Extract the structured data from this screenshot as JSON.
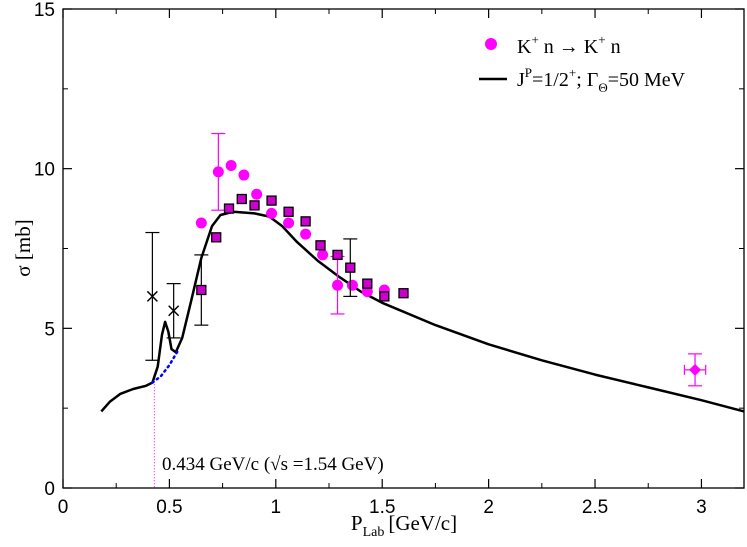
{
  "chart_data": {
    "type": "scatter",
    "xlabel": "P",
    "xlabel_sub": "Lab",
    "xlabel_unit": "[GeV/c]",
    "ylabel": "σ [mb]",
    "xlim": [
      0,
      3.2
    ],
    "ylim": [
      0,
      15
    ],
    "x_ticks": [
      {
        "value": 0,
        "label": "0"
      },
      {
        "value": 0.5,
        "label": "0.5"
      },
      {
        "value": 1,
        "label": "1"
      },
      {
        "value": 1.5,
        "label": "1.5"
      },
      {
        "value": 2,
        "label": "2"
      },
      {
        "value": 2.5,
        "label": "2.5"
      },
      {
        "value": 3,
        "label": "3"
      }
    ],
    "y_ticks": [
      {
        "value": 0,
        "label": "0"
      },
      {
        "value": 5,
        "label": "5"
      },
      {
        "value": 10,
        "label": "10"
      },
      {
        "value": 15,
        "label": "15"
      }
    ],
    "legend": {
      "position": "top-right",
      "entries": [
        {
          "label": "K+ n → K+ n",
          "marker": "circle",
          "color": "#ff00ff"
        },
        {
          "label": "JP=1/2+; ΓΘ=50 MeV",
          "marker": "line",
          "color": "#000000"
        }
      ]
    },
    "legend_label_1": {
      "a": "K",
      "a_sup": "+",
      "b": " n → K",
      "b_sup": "+",
      "c": " n"
    },
    "legend_label_2": {
      "a": "J",
      "a_sup": "P",
      "b": "=1/2",
      "b_sup": "+",
      "c": "; Γ",
      "c_sub": "Θ",
      "d": "=50 MeV"
    },
    "annotation": {
      "text": "0.434 GeV/c (√s =1.54 GeV)",
      "x_value": 0.434
    },
    "series": [
      {
        "name": "K+ n → K+ n (circles)",
        "marker": "circle",
        "color": "#ff00ff",
        "points": [
          {
            "x": 0.65,
            "y": 8.3
          },
          {
            "x": 0.73,
            "y": 9.9,
            "err": 1.2
          },
          {
            "x": 0.79,
            "y": 10.1
          },
          {
            "x": 0.85,
            "y": 9.8
          },
          {
            "x": 0.91,
            "y": 9.2
          },
          {
            "x": 0.98,
            "y": 8.6
          },
          {
            "x": 1.06,
            "y": 8.3
          },
          {
            "x": 1.14,
            "y": 7.95
          },
          {
            "x": 1.22,
            "y": 7.3
          },
          {
            "x": 1.29,
            "y": 6.35,
            "err": 0.9
          },
          {
            "x": 1.36,
            "y": 6.35
          },
          {
            "x": 1.43,
            "y": 6.15
          },
          {
            "x": 1.51,
            "y": 6.2
          }
        ]
      },
      {
        "name": "squares",
        "marker": "square",
        "color": "#cc00cc",
        "points": [
          {
            "x": 0.65,
            "y": 6.2,
            "err": 1.1
          },
          {
            "x": 0.72,
            "y": 7.85
          },
          {
            "x": 0.78,
            "y": 8.75
          },
          {
            "x": 0.84,
            "y": 9.05
          },
          {
            "x": 0.9,
            "y": 8.85
          },
          {
            "x": 0.98,
            "y": 9.0
          },
          {
            "x": 1.06,
            "y": 8.65
          },
          {
            "x": 1.14,
            "y": 8.35
          },
          {
            "x": 1.21,
            "y": 7.6
          },
          {
            "x": 1.29,
            "y": 7.3
          },
          {
            "x": 1.35,
            "y": 6.9,
            "err": 0.9
          },
          {
            "x": 1.43,
            "y": 6.4
          },
          {
            "x": 1.51,
            "y": 6.0
          },
          {
            "x": 1.6,
            "y": 6.1
          }
        ]
      },
      {
        "name": "crosses",
        "marker": "x",
        "color": "#000000",
        "points": [
          {
            "x": 0.42,
            "y": 6.0,
            "err": 2.0
          },
          {
            "x": 0.52,
            "y": 5.55,
            "err": 0.85
          }
        ]
      },
      {
        "name": "diamond",
        "marker": "diamond",
        "color": "#ff00ff",
        "points": [
          {
            "x": 2.97,
            "y": 3.7,
            "err": 0.5,
            "xerr": 0.05
          }
        ]
      },
      {
        "name": "JP=1/2+; ΓΘ=50 MeV",
        "type": "line",
        "color": "#000000",
        "points": [
          {
            "x": 0.18,
            "y": 2.4
          },
          {
            "x": 0.22,
            "y": 2.7
          },
          {
            "x": 0.27,
            "y": 2.95
          },
          {
            "x": 0.33,
            "y": 3.1
          },
          {
            "x": 0.39,
            "y": 3.2
          },
          {
            "x": 0.42,
            "y": 3.3
          },
          {
            "x": 0.445,
            "y": 3.8
          },
          {
            "x": 0.465,
            "y": 4.8
          },
          {
            "x": 0.48,
            "y": 5.2
          },
          {
            "x": 0.495,
            "y": 4.9
          },
          {
            "x": 0.51,
            "y": 4.35
          },
          {
            "x": 0.53,
            "y": 4.25
          },
          {
            "x": 0.56,
            "y": 4.7
          },
          {
            "x": 0.6,
            "y": 5.8
          },
          {
            "x": 0.65,
            "y": 7.2
          },
          {
            "x": 0.7,
            "y": 8.2
          },
          {
            "x": 0.74,
            "y": 8.55
          },
          {
            "x": 0.8,
            "y": 8.65
          },
          {
            "x": 0.9,
            "y": 8.6
          },
          {
            "x": 0.97,
            "y": 8.5
          },
          {
            "x": 1.03,
            "y": 8.2
          },
          {
            "x": 1.1,
            "y": 7.7
          },
          {
            "x": 1.2,
            "y": 7.1
          },
          {
            "x": 1.3,
            "y": 6.6
          },
          {
            "x": 1.4,
            "y": 6.15
          },
          {
            "x": 1.5,
            "y": 5.8
          },
          {
            "x": 1.75,
            "y": 5.1
          },
          {
            "x": 2.0,
            "y": 4.5
          },
          {
            "x": 2.25,
            "y": 4.0
          },
          {
            "x": 2.5,
            "y": 3.55
          },
          {
            "x": 2.75,
            "y": 3.15
          },
          {
            "x": 3.0,
            "y": 2.75
          },
          {
            "x": 3.2,
            "y": 2.4
          }
        ]
      },
      {
        "name": "dotted continuation",
        "type": "dotted-line",
        "color": "#0000ff",
        "points": [
          {
            "x": 0.42,
            "y": 3.3
          },
          {
            "x": 0.46,
            "y": 3.5
          },
          {
            "x": 0.5,
            "y": 3.85
          },
          {
            "x": 0.54,
            "y": 4.3
          }
        ]
      }
    ]
  }
}
